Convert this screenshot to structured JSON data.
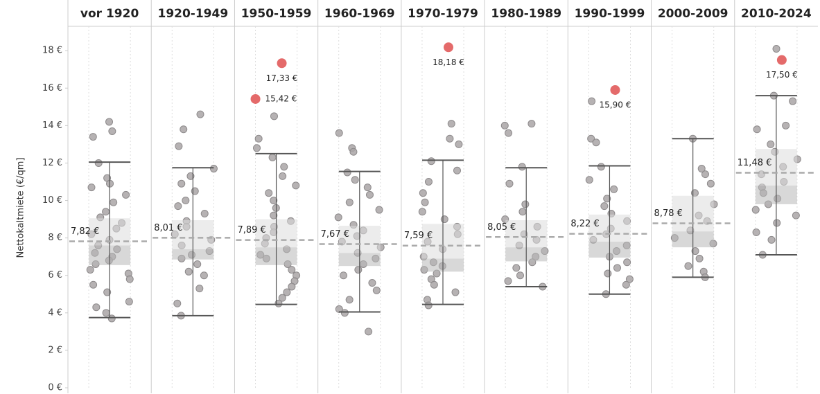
{
  "chart_data": {
    "type": "box",
    "y_label": "Nettokaltmiete (€/qm]",
    "ylim": [
      0,
      19.3
    ],
    "yticks": [
      {
        "value": 0,
        "label": "0 €"
      },
      {
        "value": 2,
        "label": "2 €"
      },
      {
        "value": 4,
        "label": "4 €"
      },
      {
        "value": 6,
        "label": "6 €"
      },
      {
        "value": 8,
        "label": "8 €"
      },
      {
        "value": 10,
        "label": "10 €"
      },
      {
        "value": 12,
        "label": "12 €"
      },
      {
        "value": 14,
        "label": "14 €"
      },
      {
        "value": 16,
        "label": "16 €"
      },
      {
        "value": 18,
        "label": "18 €"
      }
    ],
    "point_color": "#a9a5a6",
    "outlier_color": "#e46a6a",
    "categories": [
      "vor 1920",
      "1920-1949",
      "1950-1959",
      "1960-1969",
      "1970-1979",
      "1980-1989",
      "1990-1999",
      "2000-2009",
      "2010-2024"
    ],
    "boxes": [
      {
        "whisker_low": 3.75,
        "q1": 6.55,
        "median": 7.6,
        "q3": 9.05,
        "whisker_high": 12.05,
        "mean": {
          "value": 7.82,
          "label": "7,82 €"
        },
        "points": [
          14.2,
          13.7,
          13.4,
          12.0,
          11.2,
          10.9,
          10.7,
          10.3,
          9.9,
          9.4,
          9.1,
          8.8,
          8.5,
          8.2,
          7.9,
          7.6,
          7.4,
          7.2,
          7.0,
          6.8,
          6.6,
          6.3,
          6.1,
          5.8,
          5.5,
          5.1,
          4.6,
          4.3,
          4.0,
          3.7
        ],
        "outliers": []
      },
      {
        "whisker_low": 3.85,
        "q1": 6.85,
        "median": 7.4,
        "q3": 8.95,
        "whisker_high": 11.75,
        "mean": {
          "value": 8.01,
          "label": "8,01 €"
        },
        "points": [
          14.6,
          13.8,
          12.9,
          11.7,
          11.3,
          10.9,
          10.5,
          10.0,
          9.7,
          9.3,
          8.9,
          8.6,
          8.2,
          7.9,
          7.6,
          7.3,
          7.1,
          6.9,
          6.6,
          6.2,
          6.0,
          5.3,
          4.5,
          3.85
        ],
        "outliers": []
      },
      {
        "whisker_low": 4.45,
        "q1": 6.55,
        "median": 7.5,
        "q3": 9.0,
        "whisker_high": 12.5,
        "mean": {
          "value": 7.89,
          "label": "7,89 €"
        },
        "points": [
          14.5,
          13.3,
          12.8,
          12.3,
          11.8,
          11.3,
          10.8,
          10.4,
          10.0,
          9.6,
          9.2,
          8.9,
          8.6,
          8.3,
          8.0,
          7.7,
          7.4,
          7.1,
          6.9,
          6.6,
          6.3,
          6.0,
          5.7,
          5.4,
          5.1,
          4.8,
          4.5
        ],
        "outliers": [
          {
            "value": 17.33,
            "label": "17,33 €"
          },
          {
            "value": 15.42,
            "label": "15,42 €"
          }
        ]
      },
      {
        "whisker_low": 4.05,
        "q1": 6.5,
        "median": 7.2,
        "q3": 8.65,
        "whisker_high": 11.55,
        "mean": {
          "value": 7.67,
          "label": "7,67 €"
        },
        "points": [
          13.6,
          12.8,
          12.6,
          11.5,
          11.1,
          10.7,
          10.3,
          9.9,
          9.5,
          9.1,
          8.7,
          8.4,
          8.1,
          7.8,
          7.5,
          7.2,
          6.9,
          6.6,
          6.3,
          6.0,
          5.6,
          5.2,
          4.7,
          4.2,
          4.0,
          3.0
        ],
        "outliers": []
      },
      {
        "whisker_low": 4.45,
        "q1": 6.2,
        "median": 6.9,
        "q3": 8.75,
        "whisker_high": 12.15,
        "mean": {
          "value": 7.59,
          "label": "7,59 €"
        },
        "points": [
          14.1,
          13.3,
          13.0,
          12.1,
          11.6,
          11.0,
          10.4,
          9.9,
          9.4,
          9.0,
          8.6,
          8.2,
          7.8,
          7.4,
          7.0,
          6.7,
          6.5,
          6.3,
          6.1,
          5.8,
          5.5,
          5.1,
          4.7,
          4.4
        ],
        "outliers": [
          {
            "value": 18.18,
            "label": "18,18 €"
          }
        ]
      },
      {
        "whisker_low": 5.4,
        "q1": 6.75,
        "median": 7.5,
        "q3": 8.95,
        "whisker_high": 11.75,
        "mean": {
          "value": 8.05,
          "label": "8,05 €"
        },
        "points": [
          14.0,
          14.1,
          13.6,
          11.8,
          10.9,
          9.8,
          9.4,
          9.0,
          8.6,
          8.2,
          7.9,
          7.6,
          7.3,
          7.0,
          6.7,
          6.4,
          6.0,
          5.7,
          5.4
        ],
        "outliers": []
      },
      {
        "whisker_low": 5.0,
        "q1": 6.95,
        "median": 7.8,
        "q3": 9.25,
        "whisker_high": 11.85,
        "mean": {
          "value": 8.22,
          "label": "8,22 €"
        },
        "points": [
          15.3,
          13.3,
          13.1,
          11.8,
          11.1,
          10.6,
          10.1,
          9.7,
          9.3,
          8.9,
          8.5,
          8.2,
          7.9,
          7.6,
          7.3,
          7.0,
          6.7,
          6.4,
          6.1,
          5.8,
          5.5,
          5.0
        ],
        "outliers": [
          {
            "value": 15.9,
            "label": "15,90 €"
          }
        ]
      },
      {
        "whisker_low": 5.9,
        "q1": 7.5,
        "median": 8.35,
        "q3": 10.25,
        "whisker_high": 13.3,
        "mean": {
          "value": 8.78,
          "label": "8,78 €"
        },
        "points": [
          13.3,
          11.7,
          11.4,
          10.9,
          10.4,
          9.8,
          9.2,
          8.9,
          8.4,
          8.0,
          7.7,
          7.3,
          6.9,
          6.5,
          6.2,
          5.9
        ],
        "outliers": []
      },
      {
        "whisker_low": 7.1,
        "q1": 9.8,
        "median": 10.8,
        "q3": 12.75,
        "whisker_high": 15.6,
        "mean": {
          "value": 11.48,
          "label": "11,48 €"
        },
        "points": [
          18.1,
          15.6,
          15.3,
          14.0,
          13.8,
          13.0,
          12.6,
          12.2,
          11.8,
          11.4,
          11.0,
          10.7,
          10.4,
          10.1,
          9.8,
          9.5,
          9.2,
          8.8,
          8.3,
          7.9,
          7.1
        ],
        "outliers": [
          {
            "value": 17.5,
            "label": "17,50 €"
          }
        ]
      }
    ]
  }
}
